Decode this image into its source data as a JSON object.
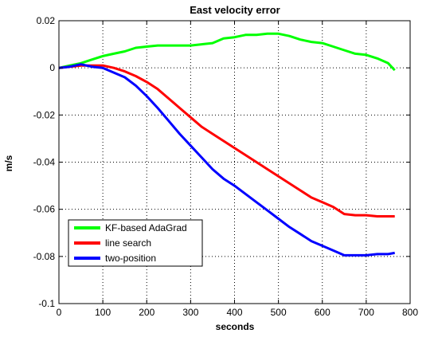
{
  "chart_data": {
    "type": "line",
    "title": "East velocity error",
    "xlabel": "seconds",
    "ylabel": "m/s",
    "xlim": [
      0,
      800
    ],
    "ylim": [
      -0.1,
      0.02
    ],
    "xticks": [
      0,
      100,
      200,
      300,
      400,
      500,
      600,
      700,
      800
    ],
    "xtick_labels": [
      "0",
      "100",
      "200",
      "300",
      "400",
      "500",
      "600",
      "700",
      "800"
    ],
    "yticks": [
      0.02,
      0,
      -0.02,
      -0.04,
      -0.06,
      -0.08,
      -0.1
    ],
    "ytick_labels": [
      "0.02",
      "0",
      "-0.02",
      "-0.04",
      "-0.06",
      "-0.08",
      "-0.1"
    ],
    "grid": true,
    "legend_position": "bottom-left",
    "series": [
      {
        "name": "KF-based AdaGrad",
        "color": "#00ff00",
        "x": [
          0,
          25,
          50,
          75,
          100,
          125,
          150,
          175,
          200,
          225,
          250,
          275,
          300,
          325,
          350,
          375,
          400,
          425,
          450,
          475,
          500,
          525,
          550,
          575,
          600,
          625,
          650,
          675,
          700,
          725,
          750,
          765
        ],
        "y": [
          0.0,
          0.001,
          0.002,
          0.0035,
          0.005,
          0.006,
          0.007,
          0.0085,
          0.009,
          0.0095,
          0.0095,
          0.0095,
          0.0095,
          0.01,
          0.0105,
          0.0125,
          0.013,
          0.014,
          0.014,
          0.0145,
          0.0145,
          0.0135,
          0.012,
          0.011,
          0.0105,
          0.009,
          0.0075,
          0.006,
          0.0055,
          0.004,
          0.002,
          -0.001
        ]
      },
      {
        "name": "line search",
        "color": "#ff0000",
        "x": [
          0,
          25,
          50,
          75,
          100,
          125,
          150,
          175,
          200,
          225,
          250,
          275,
          300,
          325,
          350,
          375,
          400,
          425,
          450,
          475,
          500,
          525,
          550,
          575,
          600,
          625,
          650,
          675,
          700,
          725,
          750,
          765
        ],
        "y": [
          0.0,
          0.0005,
          0.001,
          0.001,
          0.001,
          0.0,
          -0.0015,
          -0.0035,
          -0.006,
          -0.009,
          -0.013,
          -0.017,
          -0.021,
          -0.025,
          -0.028,
          -0.031,
          -0.034,
          -0.037,
          -0.04,
          -0.043,
          -0.046,
          -0.049,
          -0.052,
          -0.055,
          -0.057,
          -0.059,
          -0.062,
          -0.0625,
          -0.0625,
          -0.063,
          -0.063,
          -0.063
        ]
      },
      {
        "name": "two-position",
        "color": "#0000ff",
        "x": [
          0,
          25,
          50,
          75,
          100,
          125,
          150,
          175,
          200,
          225,
          250,
          275,
          300,
          325,
          350,
          375,
          400,
          425,
          450,
          475,
          500,
          525,
          550,
          575,
          600,
          625,
          650,
          675,
          700,
          725,
          750,
          765
        ],
        "y": [
          0.0,
          0.0005,
          0.0015,
          0.0005,
          0.0,
          -0.002,
          -0.004,
          -0.0075,
          -0.012,
          -0.017,
          -0.0225,
          -0.028,
          -0.033,
          -0.038,
          -0.043,
          -0.047,
          -0.05,
          -0.0535,
          -0.057,
          -0.0605,
          -0.064,
          -0.0675,
          -0.0705,
          -0.0735,
          -0.0755,
          -0.0775,
          -0.0795,
          -0.0795,
          -0.0795,
          -0.079,
          -0.079,
          -0.0785
        ]
      }
    ]
  }
}
